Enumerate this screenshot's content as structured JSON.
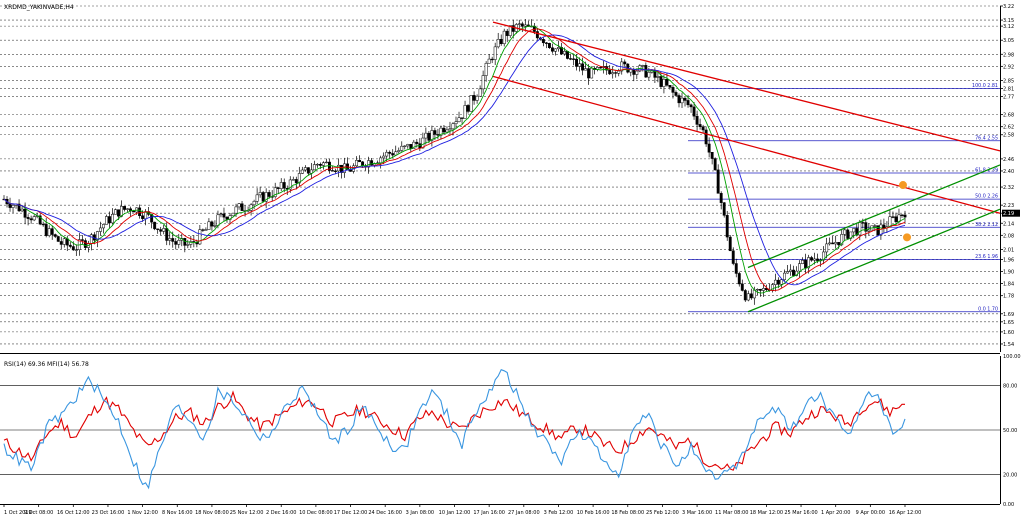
{
  "chart_data": [
    {
      "type": "candlestick",
      "title": "XRDMD_YAKINVADE,H4",
      "ylim": [
        1.5,
        3.22
      ],
      "price_labels": [
        "3.22",
        "3.15",
        "3.12",
        "3.05",
        "2.98",
        "2.92",
        "2.85",
        "2.81",
        "2.77",
        "2.68",
        "2.62",
        "2.58",
        "2.46",
        "2.40",
        "2.32",
        "2.23",
        "2.19",
        "2.14",
        "2.08",
        "2.01",
        "1.96",
        "1.90",
        "1.84",
        "1.78",
        "1.69",
        "1.65",
        "1.60",
        "1.54"
      ],
      "price_values": [
        3.22,
        3.15,
        3.12,
        3.05,
        2.98,
        2.92,
        2.85,
        2.81,
        2.77,
        2.68,
        2.62,
        2.58,
        2.46,
        2.4,
        2.32,
        2.23,
        2.19,
        2.14,
        2.08,
        2.01,
        1.96,
        1.9,
        1.84,
        1.78,
        1.69,
        1.65,
        1.6,
        1.54
      ],
      "current_price": "2.19",
      "date_labels": [
        "1 Oct 2019",
        "9 Oct 08:00",
        "16 Oct 12:00",
        "23 Oct 16:00",
        "1 Nov 12:00",
        "8 Nov 16:00",
        "18 Nov 08:00",
        "25 Nov 12:00",
        "2 Dec 16:00",
        "10 Dec 08:00",
        "17 Dec 12:00",
        "24 Dec 16:00",
        "3 Jan 08:00",
        "10 Jan 12:00",
        "17 Jan 16:00",
        "27 Jan 08:00",
        "3 Feb 12:00",
        "10 Feb 16:00",
        "18 Feb 08:00",
        "25 Feb 12:00",
        "3 Mar 16:00",
        "11 Mar 08:00",
        "18 Mar 12:00",
        "25 Mar 16:00",
        "1 Apr 20:00",
        "9 Apr 00:00",
        "16 Apr 12:00"
      ],
      "close_path": [
        2.26,
        2.22,
        2.17,
        2.1,
        2.04,
        2.02,
        2.06,
        2.14,
        2.2,
        2.22,
        2.18,
        2.1,
        2.04,
        2.03,
        2.1,
        2.16,
        2.2,
        2.23,
        2.27,
        2.3,
        2.34,
        2.39,
        2.44,
        2.43,
        2.4,
        2.44,
        2.46,
        2.49,
        2.51,
        2.54,
        2.58,
        2.63,
        2.68,
        2.78,
        2.96,
        3.08,
        3.12,
        3.1,
        3.04,
        2.98,
        2.93,
        2.88,
        2.9,
        2.92,
        2.91,
        2.89,
        2.84,
        2.77,
        2.72,
        2.58,
        2.3,
        1.92,
        1.76,
        1.8,
        1.86,
        1.9,
        1.94,
        1.98,
        2.04,
        2.09,
        2.12,
        2.1,
        2.15,
        2.2
      ],
      "fibonacci": [
        {
          "label": "100.0 2.81",
          "value": 2.81
        },
        {
          "label": "76.4 2.55",
          "value": 2.55
        },
        {
          "label": "61.8 2.39",
          "value": 2.39
        },
        {
          "label": "50.0 2.26",
          "value": 2.26
        },
        {
          "label": "38.2 2.12",
          "value": 2.12
        },
        {
          "label": "23.6 1.96",
          "value": 1.96
        },
        {
          "label": "0.0 1.70",
          "value": 1.7
        }
      ],
      "colors": {
        "ma_fast": "#00a000",
        "ma_mid": "#e00000",
        "ma_slow": "#2020e0",
        "channel_down": "#e00000",
        "channel_up": "#009000",
        "fib": "#2020c0",
        "marker": "#f59a23"
      }
    },
    {
      "type": "line",
      "title": "RSI(14) 69.36 MFI(14) 56.78",
      "ylim": [
        0,
        100
      ],
      "levels": [
        "100.00",
        "80.00",
        "50.00",
        "20.00",
        "0.00"
      ],
      "level_values": [
        100,
        80,
        50,
        20,
        0
      ],
      "series": [
        {
          "name": "RSI(14)",
          "color": "#e00000",
          "values": [
            42,
            36,
            30,
            48,
            55,
            45,
            60,
            70,
            64,
            50,
            38,
            46,
            58,
            62,
            54,
            66,
            72,
            60,
            52,
            58,
            64,
            70,
            66,
            55,
            60,
            64,
            58,
            52,
            46,
            58,
            62,
            54,
            50,
            60,
            66,
            70,
            62,
            56,
            50,
            44,
            52,
            48,
            40,
            36,
            44,
            52,
            46,
            38,
            44,
            30,
            26,
            22,
            34,
            44,
            52,
            48,
            58,
            64,
            60,
            54,
            66,
            70,
            62,
            69
          ]
        },
        {
          "name": "MFI(14)",
          "color": "#3a96e0",
          "values": [
            38,
            30,
            24,
            52,
            60,
            72,
            84,
            70,
            56,
            30,
            10,
            40,
            66,
            58,
            44,
            76,
            70,
            58,
            44,
            52,
            70,
            78,
            60,
            42,
            50,
            66,
            54,
            40,
            36,
            62,
            76,
            60,
            40,
            64,
            76,
            92,
            70,
            52,
            40,
            30,
            48,
            42,
            28,
            22,
            50,
            60,
            40,
            26,
            38,
            20,
            18,
            24,
            40,
            60,
            64,
            50,
            66,
            74,
            58,
            44,
            70,
            76,
            50,
            57
          ]
        }
      ]
    }
  ]
}
